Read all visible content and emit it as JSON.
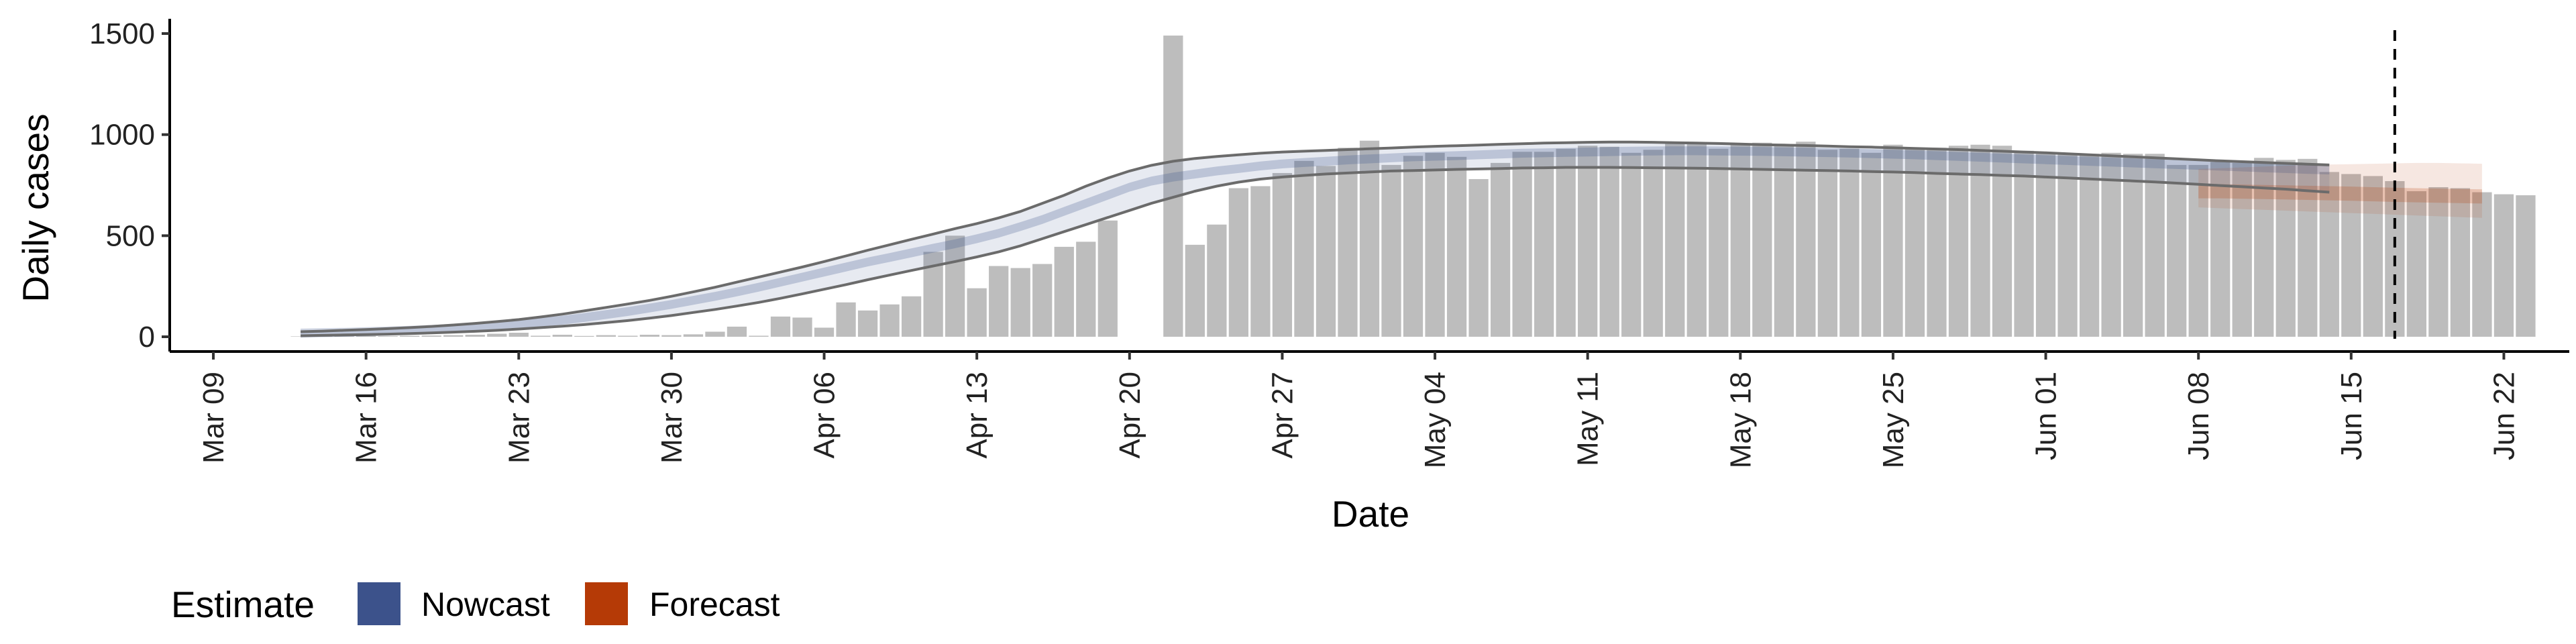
{
  "chart_data": {
    "type": "bar",
    "title": "",
    "xlabel": "Date",
    "ylabel": "Daily cases",
    "ylim": [
      0,
      1500
    ],
    "yticks": [
      0,
      500,
      1000,
      1500
    ],
    "xlim": [
      "2020-03-07",
      "2020-06-25"
    ],
    "xticks": [
      {
        "date": "2020-03-09",
        "label": "Mar 09"
      },
      {
        "date": "2020-03-16",
        "label": "Mar 16"
      },
      {
        "date": "2020-03-23",
        "label": "Mar 23"
      },
      {
        "date": "2020-03-30",
        "label": "Mar 30"
      },
      {
        "date": "2020-04-06",
        "label": "Apr 06"
      },
      {
        "date": "2020-04-13",
        "label": "Apr 13"
      },
      {
        "date": "2020-04-20",
        "label": "Apr 20"
      },
      {
        "date": "2020-04-27",
        "label": "Apr 27"
      },
      {
        "date": "2020-05-04",
        "label": "May 04"
      },
      {
        "date": "2020-05-11",
        "label": "May 11"
      },
      {
        "date": "2020-05-18",
        "label": "May 18"
      },
      {
        "date": "2020-05-25",
        "label": "May 25"
      },
      {
        "date": "2020-06-01",
        "label": "Jun 01"
      },
      {
        "date": "2020-06-08",
        "label": "Jun 08"
      },
      {
        "date": "2020-06-15",
        "label": "Jun 15"
      },
      {
        "date": "2020-06-22",
        "label": "Jun 22"
      }
    ],
    "bars_start_date": "2020-03-13",
    "bar_values": [
      2,
      2,
      3,
      4,
      3,
      5,
      6,
      8,
      10,
      15,
      20,
      5,
      10,
      4,
      8,
      5,
      10,
      8,
      12,
      25,
      50,
      5,
      100,
      95,
      45,
      170,
      130,
      160,
      200,
      420,
      500,
      240,
      350,
      340,
      360,
      445,
      470,
      575,
      0,
      0,
      1490,
      455,
      555,
      735,
      745,
      810,
      870,
      845,
      935,
      970,
      850,
      895,
      910,
      890,
      780,
      860,
      915,
      915,
      930,
      945,
      940,
      910,
      925,
      965,
      960,
      930,
      955,
      960,
      950,
      965,
      925,
      930,
      910,
      950,
      935,
      935,
      945,
      950,
      945,
      920,
      905,
      905,
      905,
      910,
      905,
      905,
      850,
      850,
      865,
      860,
      885,
      875,
      880,
      815,
      805,
      795,
      770,
      720,
      740,
      735,
      715,
      705,
      700
    ],
    "series": [
      {
        "name": "Nowcast",
        "color": "#3c528b"
      },
      {
        "name": "Forecast",
        "color": "#b53a06"
      }
    ],
    "nowcast": {
      "dates_start": "2020-03-13",
      "median": [
        18,
        20,
        22,
        25,
        28,
        32,
        36,
        42,
        48,
        55,
        62,
        72,
        82,
        95,
        110,
        125,
        142,
        160,
        180,
        200,
        222,
        245,
        270,
        295,
        320,
        345,
        370,
        392,
        415,
        438,
        460,
        485,
        512,
        545,
        580,
        620,
        660,
        700,
        740,
        770,
        790,
        805,
        820,
        832,
        845,
        855,
        862,
        868,
        875,
        880,
        885,
        890,
        893,
        896,
        900,
        904,
        908,
        910,
        912,
        914,
        916,
        918,
        919,
        920,
        920,
        919,
        918,
        917,
        915,
        913,
        911,
        909,
        906,
        903,
        900,
        896,
        892,
        888,
        884,
        880,
        876,
        872,
        868,
        864,
        860,
        856,
        852,
        848,
        844,
        840,
        836,
        832,
        828,
        825
      ],
      "lower": [
        5,
        7,
        9,
        11,
        13,
        16,
        19,
        23,
        27,
        32,
        38,
        45,
        52,
        60,
        70,
        80,
        92,
        105,
        120,
        135,
        152,
        170,
        190,
        212,
        235,
        258,
        282,
        305,
        328,
        350,
        372,
        395,
        420,
        450,
        485,
        520,
        555,
        590,
        625,
        660,
        690,
        720,
        745,
        765,
        780,
        790,
        798,
        805,
        810,
        815,
        820,
        822,
        825,
        828,
        830,
        832,
        835,
        836,
        838,
        838,
        838,
        837,
        836,
        835,
        834,
        832,
        830,
        828,
        826,
        824,
        822,
        820,
        817,
        815,
        812,
        808,
        805,
        802,
        798,
        795,
        790,
        786,
        781,
        776,
        771,
        766,
        760,
        754,
        748,
        742,
        736,
        730,
        722,
        715
      ],
      "upper": [
        25,
        28,
        32,
        36,
        40,
        45,
        51,
        58,
        66,
        75,
        85,
        98,
        112,
        128,
        145,
        162,
        180,
        200,
        222,
        245,
        270,
        295,
        320,
        345,
        372,
        400,
        428,
        455,
        482,
        508,
        535,
        560,
        588,
        620,
        660,
        700,
        745,
        785,
        820,
        848,
        868,
        882,
        892,
        900,
        908,
        914,
        918,
        922,
        926,
        930,
        934,
        938,
        942,
        945,
        948,
        952,
        955,
        958,
        960,
        962,
        963,
        963,
        962,
        960,
        958,
        956,
        953,
        950,
        948,
        946,
        943,
        940,
        938,
        935,
        932,
        929,
        926,
        922,
        918,
        914,
        910,
        905,
        900,
        895,
        890,
        885,
        880,
        875,
        870,
        866,
        862,
        858,
        854,
        850
      ]
    },
    "forecast": {
      "dates_start": "2020-06-08",
      "median": [
        720,
        720,
        718,
        716,
        714,
        712,
        710,
        708,
        705,
        702,
        700,
        698,
        696,
        694
      ],
      "lower": [
        640,
        636,
        632,
        628,
        624,
        620,
        616,
        612,
        608,
        604,
        600,
        596,
        592,
        588
      ],
      "upper": [
        830,
        834,
        838,
        842,
        846,
        850,
        852,
        854,
        856,
        858,
        860,
        860,
        858,
        856
      ]
    },
    "reference_line_date": "2020-06-17",
    "legend": {
      "title": "Estimate",
      "position": "bottom-left",
      "items": [
        {
          "label": "Nowcast",
          "color": "#3c528b"
        },
        {
          "label": "Forecast",
          "color": "#b53a06"
        }
      ]
    }
  }
}
